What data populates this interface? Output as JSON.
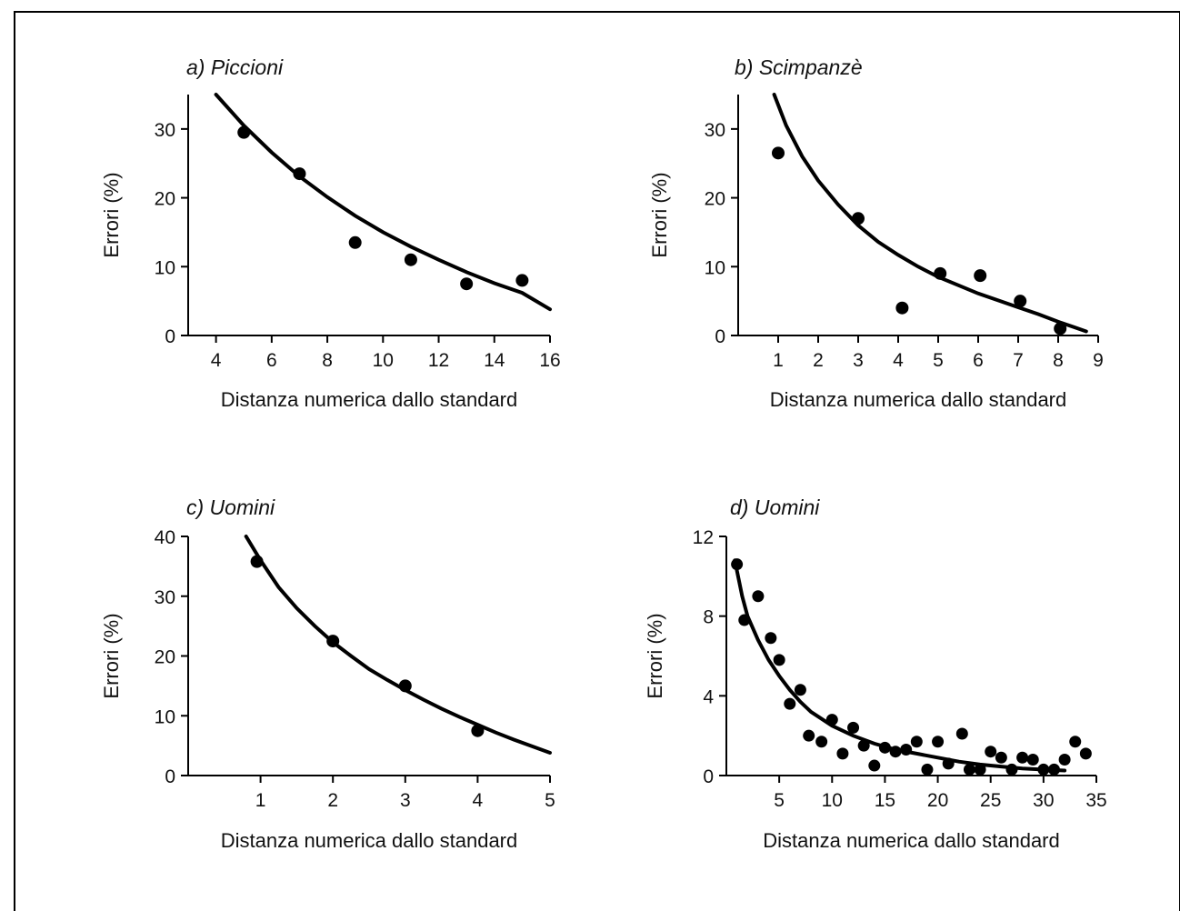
{
  "chart_data": [
    {
      "type": "scatter",
      "title": "a) Piccioni",
      "xlabel": "Distanza numerica dallo standard",
      "ylabel": "Errori (%)",
      "xlim": [
        3,
        16
      ],
      "ylim": [
        0,
        35
      ],
      "xticks": [
        4,
        6,
        8,
        10,
        12,
        14,
        16
      ],
      "yticks": [
        0,
        10,
        20,
        30
      ],
      "points": [
        {
          "x": 5,
          "y": 29.5
        },
        {
          "x": 7,
          "y": 23.5
        },
        {
          "x": 9,
          "y": 13.5
        },
        {
          "x": 11,
          "y": 11
        },
        {
          "x": 13,
          "y": 7.5
        },
        {
          "x": 15,
          "y": 8
        }
      ],
      "curve": [
        {
          "x": 4,
          "y": 35
        },
        {
          "x": 5,
          "y": 30.5
        },
        {
          "x": 6,
          "y": 26.6
        },
        {
          "x": 7,
          "y": 23.1
        },
        {
          "x": 8,
          "y": 20.1
        },
        {
          "x": 9,
          "y": 17.4
        },
        {
          "x": 10,
          "y": 15
        },
        {
          "x": 11,
          "y": 12.9
        },
        {
          "x": 12,
          "y": 11
        },
        {
          "x": 13,
          "y": 9.2
        },
        {
          "x": 14,
          "y": 7.6
        },
        {
          "x": 15,
          "y": 6.2
        },
        {
          "x": 16,
          "y": 3.8
        }
      ]
    },
    {
      "type": "scatter",
      "title": "b) Scimpanzè",
      "xlabel": "Distanza numerica dallo standard",
      "ylabel": "Errori (%)",
      "xlim": [
        0,
        9
      ],
      "ylim": [
        0,
        35
      ],
      "xticks": [
        1,
        2,
        3,
        4,
        5,
        6,
        7,
        8,
        9
      ],
      "yticks": [
        0,
        10,
        20,
        30
      ],
      "points": [
        {
          "x": 1,
          "y": 26.5
        },
        {
          "x": 3,
          "y": 17
        },
        {
          "x": 4.1,
          "y": 4
        },
        {
          "x": 5.05,
          "y": 9
        },
        {
          "x": 6.05,
          "y": 8.7
        },
        {
          "x": 7.05,
          "y": 5
        },
        {
          "x": 8.05,
          "y": 1
        }
      ],
      "curve": [
        {
          "x": 0.9,
          "y": 35
        },
        {
          "x": 1.2,
          "y": 30.5
        },
        {
          "x": 1.6,
          "y": 26
        },
        {
          "x": 2,
          "y": 22.5
        },
        {
          "x": 2.5,
          "y": 19
        },
        {
          "x": 3,
          "y": 16
        },
        {
          "x": 3.5,
          "y": 13.6
        },
        {
          "x": 4,
          "y": 11.7
        },
        {
          "x": 4.5,
          "y": 10
        },
        {
          "x": 5,
          "y": 8.5
        },
        {
          "x": 5.5,
          "y": 7.3
        },
        {
          "x": 6,
          "y": 6.1
        },
        {
          "x": 6.5,
          "y": 5.1
        },
        {
          "x": 7,
          "y": 4.1
        },
        {
          "x": 7.5,
          "y": 3.1
        },
        {
          "x": 8,
          "y": 2
        },
        {
          "x": 8.4,
          "y": 1.2
        },
        {
          "x": 8.7,
          "y": 0.6
        }
      ]
    },
    {
      "type": "scatter",
      "title": "c) Uomini",
      "xlabel": "Distanza numerica dallo standard",
      "ylabel": "Errori (%)",
      "xlim": [
        0,
        5
      ],
      "ylim": [
        0,
        40
      ],
      "xticks": [
        1,
        2,
        3,
        4,
        5
      ],
      "yticks": [
        0,
        10,
        20,
        30,
        40
      ],
      "points": [
        {
          "x": 0.95,
          "y": 35.8
        },
        {
          "x": 2,
          "y": 22.5
        },
        {
          "x": 3,
          "y": 15
        },
        {
          "x": 4,
          "y": 7.5
        }
      ],
      "curve": [
        {
          "x": 0.8,
          "y": 40
        },
        {
          "x": 1,
          "y": 36
        },
        {
          "x": 1.25,
          "y": 31.5
        },
        {
          "x": 1.5,
          "y": 28
        },
        {
          "x": 1.75,
          "y": 25
        },
        {
          "x": 2,
          "y": 22.3
        },
        {
          "x": 2.25,
          "y": 20
        },
        {
          "x": 2.5,
          "y": 17.8
        },
        {
          "x": 2.75,
          "y": 16
        },
        {
          "x": 3,
          "y": 14.3
        },
        {
          "x": 3.25,
          "y": 12.7
        },
        {
          "x": 3.5,
          "y": 11.2
        },
        {
          "x": 3.75,
          "y": 9.8
        },
        {
          "x": 4,
          "y": 8.5
        },
        {
          "x": 4.25,
          "y": 7.2
        },
        {
          "x": 4.5,
          "y": 6
        },
        {
          "x": 4.75,
          "y": 4.9
        },
        {
          "x": 5,
          "y": 3.8
        }
      ]
    },
    {
      "type": "scatter",
      "title": "d) Uomini",
      "xlabel": "Distanza numerica dallo standard",
      "ylabel": "Errori (%)",
      "xlim": [
        0,
        35
      ],
      "ylim": [
        0,
        12
      ],
      "xticks": [
        5,
        10,
        15,
        20,
        25,
        30,
        35
      ],
      "yticks": [
        0,
        4,
        8,
        12
      ],
      "points": [
        {
          "x": 1,
          "y": 10.6
        },
        {
          "x": 1.7,
          "y": 7.8
        },
        {
          "x": 3,
          "y": 9
        },
        {
          "x": 4.2,
          "y": 6.9
        },
        {
          "x": 5,
          "y": 5.8
        },
        {
          "x": 6,
          "y": 3.6
        },
        {
          "x": 7,
          "y": 4.3
        },
        {
          "x": 7.8,
          "y": 2
        },
        {
          "x": 9,
          "y": 1.7
        },
        {
          "x": 10,
          "y": 2.8
        },
        {
          "x": 11,
          "y": 1.1
        },
        {
          "x": 12,
          "y": 2.4
        },
        {
          "x": 13,
          "y": 1.5
        },
        {
          "x": 14,
          "y": 0.5
        },
        {
          "x": 15,
          "y": 1.4
        },
        {
          "x": 16,
          "y": 1.2
        },
        {
          "x": 17,
          "y": 1.3
        },
        {
          "x": 18,
          "y": 1.7
        },
        {
          "x": 19,
          "y": 0.3
        },
        {
          "x": 20,
          "y": 1.7
        },
        {
          "x": 21,
          "y": 0.6
        },
        {
          "x": 22.3,
          "y": 2.1
        },
        {
          "x": 23,
          "y": 0.3
        },
        {
          "x": 24,
          "y": 0.3
        },
        {
          "x": 25,
          "y": 1.2
        },
        {
          "x": 26,
          "y": 0.9
        },
        {
          "x": 27,
          "y": 0.3
        },
        {
          "x": 28,
          "y": 0.9
        },
        {
          "x": 29,
          "y": 0.8
        },
        {
          "x": 30,
          "y": 0.3
        },
        {
          "x": 31,
          "y": 0.3
        },
        {
          "x": 32,
          "y": 0.8
        },
        {
          "x": 33,
          "y": 1.7
        },
        {
          "x": 34,
          "y": 1.1
        }
      ],
      "curve": [
        {
          "x": 0.8,
          "y": 10.8
        },
        {
          "x": 1.5,
          "y": 9
        },
        {
          "x": 2,
          "y": 8
        },
        {
          "x": 3,
          "y": 6.8
        },
        {
          "x": 4,
          "y": 5.8
        },
        {
          "x": 5,
          "y": 5
        },
        {
          "x": 6,
          "y": 4.3
        },
        {
          "x": 7,
          "y": 3.7
        },
        {
          "x": 8,
          "y": 3.2
        },
        {
          "x": 10,
          "y": 2.5
        },
        {
          "x": 12,
          "y": 2
        },
        {
          "x": 14,
          "y": 1.6
        },
        {
          "x": 16,
          "y": 1.3
        },
        {
          "x": 18,
          "y": 1.1
        },
        {
          "x": 20,
          "y": 0.9
        },
        {
          "x": 22,
          "y": 0.7
        },
        {
          "x": 24,
          "y": 0.55
        },
        {
          "x": 26,
          "y": 0.45
        },
        {
          "x": 28,
          "y": 0.35
        },
        {
          "x": 30,
          "y": 0.3
        },
        {
          "x": 32,
          "y": 0.25
        }
      ]
    }
  ]
}
